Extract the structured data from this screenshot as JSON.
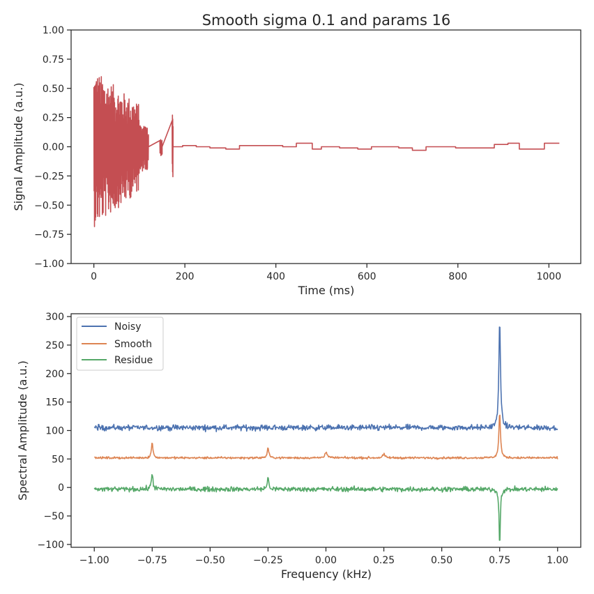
{
  "chart_data": [
    {
      "type": "line",
      "title": "Smooth sigma 0.1 and params 16",
      "xlabel": "Time (ms)",
      "ylabel": "Signal Amplitude (a.u.)",
      "xlim": [
        -50,
        1070
      ],
      "ylim": [
        -1.0,
        1.0
      ],
      "xticks": [
        0,
        200,
        400,
        600,
        800,
        1000
      ],
      "xtick_labels": [
        "0",
        "200",
        "400",
        "600",
        "800",
        "1000"
      ],
      "yticks": [
        -1.0,
        -0.75,
        -0.5,
        -0.25,
        0.0,
        0.25,
        0.5,
        0.75,
        1.0
      ],
      "ytick_labels": [
        "−1.00",
        "−0.75",
        "−0.50",
        "−0.25",
        "0.00",
        "0.25",
        "0.50",
        "0.75",
        "1.00"
      ],
      "grid": false,
      "series": [
        {
          "color": "#c44e52",
          "burst": [
            {
              "x": [
                0,
                100
              ],
              "amplitude_max": 0.66,
              "amplitude_min": -0.69
            },
            {
              "x": [
                100,
                120
              ],
              "amplitude_max": 0.18,
              "amplitude_min": -0.22
            },
            {
              "x": [
                145,
                150
              ],
              "amplitude_max": 0.08,
              "amplitude_min": -0.08
            },
            {
              "x": [
                172,
                174
              ],
              "amplitude_max": 0.31,
              "amplitude_min": -0.34
            }
          ],
          "steps": [
            {
              "x": [
                120,
                195
              ],
              "y": 0.0
            },
            {
              "x": [
                195,
                225
              ],
              "y": 0.01
            },
            {
              "x": [
                225,
                255
              ],
              "y": 0.0
            },
            {
              "x": [
                255,
                290
              ],
              "y": -0.01
            },
            {
              "x": [
                290,
                320
              ],
              "y": -0.02
            },
            {
              "x": [
                320,
                415
              ],
              "y": 0.01
            },
            {
              "x": [
                415,
                445
              ],
              "y": 0.0
            },
            {
              "x": [
                445,
                480
              ],
              "y": 0.03
            },
            {
              "x": [
                480,
                500
              ],
              "y": -0.02
            },
            {
              "x": [
                500,
                540
              ],
              "y": 0.0
            },
            {
              "x": [
                540,
                580
              ],
              "y": -0.01
            },
            {
              "x": [
                580,
                610
              ],
              "y": -0.02
            },
            {
              "x": [
                610,
                670
              ],
              "y": 0.0
            },
            {
              "x": [
                670,
                700
              ],
              "y": -0.01
            },
            {
              "x": [
                700,
                730
              ],
              "y": -0.03
            },
            {
              "x": [
                730,
                795
              ],
              "y": 0.0
            },
            {
              "x": [
                795,
                830
              ],
              "y": -0.01
            },
            {
              "x": [
                830,
                880
              ],
              "y": -0.01
            },
            {
              "x": [
                880,
                910
              ],
              "y": 0.02
            },
            {
              "x": [
                910,
                935
              ],
              "y": 0.03
            },
            {
              "x": [
                935,
                960
              ],
              "y": -0.02
            },
            {
              "x": [
                960,
                990
              ],
              "y": -0.02
            },
            {
              "x": [
                990,
                1023
              ],
              "y": 0.03
            }
          ]
        }
      ]
    },
    {
      "type": "line",
      "xlabel": "Frequency (kHz)",
      "ylabel": "Spectral Amplitude (a.u.)",
      "xlim": [
        -1.1,
        1.1
      ],
      "ylim": [
        -105,
        305
      ],
      "xticks": [
        -1.0,
        -0.75,
        -0.5,
        -0.25,
        0.0,
        0.25,
        0.5,
        0.75,
        1.0
      ],
      "xtick_labels": [
        "−1.00",
        "−0.75",
        "−0.50",
        "−0.25",
        "0.00",
        "0.25",
        "0.50",
        "0.75",
        "1.00"
      ],
      "yticks": [
        -100,
        -50,
        0,
        50,
        100,
        150,
        200,
        250,
        300
      ],
      "ytick_labels": [
        "−100",
        "−50",
        "0",
        "50",
        "100",
        "150",
        "200",
        "250",
        "300"
      ],
      "grid": false,
      "legend": "upper-left",
      "series": [
        {
          "name": "Noisy",
          "color": "#4c72b0",
          "baseline": 105,
          "noise": 3.5,
          "peaks": [
            {
              "x": 0.75,
              "height": 195,
              "width": 0.004
            }
          ]
        },
        {
          "name": "Smooth",
          "color": "#dd8452",
          "baseline": 52,
          "noise": 1.3,
          "peaks": [
            {
              "x": -0.75,
              "height": 27,
              "width": 0.004
            },
            {
              "x": -0.25,
              "height": 18,
              "width": 0.004
            },
            {
              "x": 0.0,
              "height": 10,
              "width": 0.006
            },
            {
              "x": 0.25,
              "height": 6,
              "width": 0.006
            },
            {
              "x": 0.75,
              "height": 80,
              "width": 0.004
            }
          ]
        },
        {
          "name": "Residue",
          "color": "#55a868",
          "baseline": -3,
          "noise": 3.0,
          "peaks": [
            {
              "x": -0.75,
              "height": 28,
              "width": 0.004
            },
            {
              "x": -0.25,
              "height": 20,
              "width": 0.004
            },
            {
              "x": 0.75,
              "height": -102,
              "width": 0.003
            }
          ]
        }
      ]
    }
  ]
}
